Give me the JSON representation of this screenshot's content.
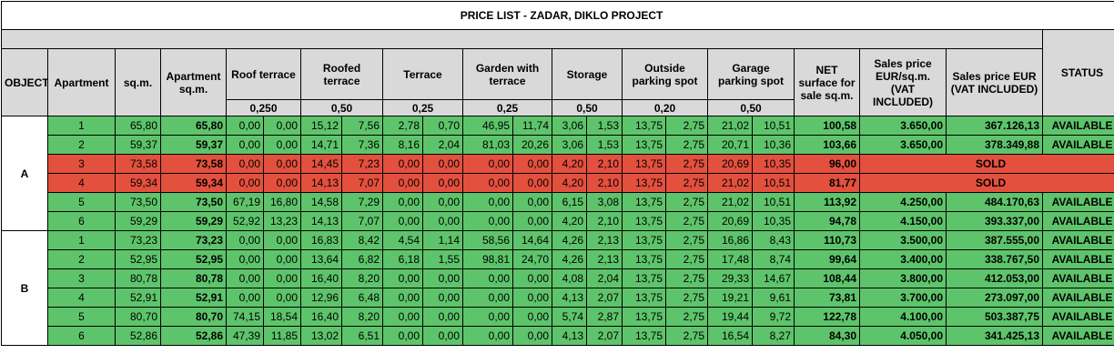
{
  "title": "PRICE LIST - ZADAR, DIKLO PROJECT",
  "headers": {
    "object": "OBJECT",
    "apartment": "Apartment",
    "sqm": "sq.m.",
    "apartment_sqm": "Apartment sq.m.",
    "roof_terrace": "Roof terrace",
    "roofed_terrace": "Roofed terrace",
    "terrace": "Terrace",
    "garden": "Garden with terrace",
    "storage": "Storage",
    "outside_parking": "Outside parking spot",
    "garage_parking": "Garage parking spot",
    "net": "NET surface for sale sq.m.",
    "price_sqm": "Sales price EUR/sq.m. (VAT INCLUDED)",
    "price": "Sales price EUR (VAT INCLUDED)",
    "status": "STATUS"
  },
  "coefficients": {
    "roof_terrace": "0,250",
    "roofed_terrace": "0,50",
    "terrace": "0,25",
    "garden": "0,25",
    "storage": "0,50",
    "outside_parking": "0,20",
    "garage_parking": "0,50"
  },
  "objects": [
    {
      "name": "A",
      "rows": [
        {
          "apt": "1",
          "sqm": "65,80",
          "apt_sqm": "65,80",
          "rt1": "0,00",
          "rt2": "0,00",
          "rf1": "15,12",
          "rf2": "7,56",
          "t1": "2,78",
          "t2": "0,70",
          "g1": "46,95",
          "g2": "11,74",
          "s1": "3,06",
          "s2": "1,53",
          "op1": "13,75",
          "op2": "2,75",
          "gp1": "21,02",
          "gp2": "10,51",
          "net": "100,58",
          "psqm": "3.650,00",
          "price": "367.126,13",
          "status": "AVAILABLE"
        },
        {
          "apt": "2",
          "sqm": "59,37",
          "apt_sqm": "59,37",
          "rt1": "0,00",
          "rt2": "0,00",
          "rf1": "14,71",
          "rf2": "7,36",
          "t1": "8,16",
          "t2": "2,04",
          "g1": "81,03",
          "g2": "20,26",
          "s1": "3,06",
          "s2": "1,53",
          "op1": "13,75",
          "op2": "2,75",
          "gp1": "20,71",
          "gp2": "10,36",
          "net": "103,66",
          "psqm": "3.650,00",
          "price": "378.349,88",
          "status": "AVAILABLE"
        },
        {
          "apt": "3",
          "sqm": "73,58",
          "apt_sqm": "73,58",
          "rt1": "0,00",
          "rt2": "0,00",
          "rf1": "14,45",
          "rf2": "7,23",
          "t1": "0,00",
          "t2": "0,00",
          "g1": "0,00",
          "g2": "0,00",
          "s1": "4,20",
          "s2": "2,10",
          "op1": "13,75",
          "op2": "2,75",
          "gp1": "20,69",
          "gp2": "10,35",
          "net": "96,00",
          "psqm": "",
          "price": "",
          "status": "SOLD"
        },
        {
          "apt": "4",
          "sqm": "59,34",
          "apt_sqm": "59,34",
          "rt1": "0,00",
          "rt2": "0,00",
          "rf1": "14,13",
          "rf2": "7,07",
          "t1": "0,00",
          "t2": "0,00",
          "g1": "0,00",
          "g2": "0,00",
          "s1": "4,20",
          "s2": "2,10",
          "op1": "13,75",
          "op2": "2,75",
          "gp1": "21,02",
          "gp2": "10,51",
          "net": "81,77",
          "psqm": "",
          "price": "",
          "status": "SOLD"
        },
        {
          "apt": "5",
          "sqm": "73,50",
          "apt_sqm": "73,50",
          "rt1": "67,19",
          "rt2": "16,80",
          "rf1": "14,58",
          "rf2": "7,29",
          "t1": "0,00",
          "t2": "0,00",
          "g1": "0,00",
          "g2": "0,00",
          "s1": "6,15",
          "s2": "3,08",
          "op1": "13,75",
          "op2": "2,75",
          "gp1": "21,02",
          "gp2": "10,51",
          "net": "113,92",
          "psqm": "4.250,00",
          "price": "484.170,63",
          "status": "AVAILABLE"
        },
        {
          "apt": "6",
          "sqm": "59,29",
          "apt_sqm": "59,29",
          "rt1": "52,92",
          "rt2": "13,23",
          "rf1": "14,13",
          "rf2": "7,07",
          "t1": "0,00",
          "t2": "0,00",
          "g1": "0,00",
          "g2": "0,00",
          "s1": "4,20",
          "s2": "2,10",
          "op1": "13,75",
          "op2": "2,75",
          "gp1": "20,69",
          "gp2": "10,35",
          "net": "94,78",
          "psqm": "4.150,00",
          "price": "393.337,00",
          "status": "AVAILABLE"
        }
      ]
    },
    {
      "name": "B",
      "rows": [
        {
          "apt": "1",
          "sqm": "73,23",
          "apt_sqm": "73,23",
          "rt1": "0,00",
          "rt2": "0,00",
          "rf1": "16,83",
          "rf2": "8,42",
          "t1": "4,54",
          "t2": "1,14",
          "g1": "58,56",
          "g2": "14,64",
          "s1": "4,26",
          "s2": "2,13",
          "op1": "13,75",
          "op2": "2,75",
          "gp1": "16,86",
          "gp2": "8,43",
          "net": "110,73",
          "psqm": "3.500,00",
          "price": "387.555,00",
          "status": "AVAILABLE"
        },
        {
          "apt": "2",
          "sqm": "52,95",
          "apt_sqm": "52,95",
          "rt1": "0,00",
          "rt2": "0,00",
          "rf1": "13,64",
          "rf2": "6,82",
          "t1": "6,18",
          "t2": "1,55",
          "g1": "98,81",
          "g2": "24,70",
          "s1": "4,26",
          "s2": "2,13",
          "op1": "13,75",
          "op2": "2,75",
          "gp1": "17,48",
          "gp2": "8,74",
          "net": "99,64",
          "psqm": "3.400,00",
          "price": "338.767,50",
          "status": "AVAILABLE"
        },
        {
          "apt": "3",
          "sqm": "80,78",
          "apt_sqm": "80,78",
          "rt1": "0,00",
          "rt2": "0,00",
          "rf1": "16,40",
          "rf2": "8,20",
          "t1": "0,00",
          "t2": "0,00",
          "g1": "0,00",
          "g2": "0,00",
          "s1": "4,08",
          "s2": "2,04",
          "op1": "13,75",
          "op2": "2,75",
          "gp1": "29,33",
          "gp2": "14,67",
          "net": "108,44",
          "psqm": "3.800,00",
          "price": "412.053,00",
          "status": "AVAILABLE"
        },
        {
          "apt": "4",
          "sqm": "52,91",
          "apt_sqm": "52,91",
          "rt1": "0,00",
          "rt2": "0,00",
          "rf1": "12,96",
          "rf2": "6,48",
          "t1": "0,00",
          "t2": "0,00",
          "g1": "0,00",
          "g2": "0,00",
          "s1": "4,13",
          "s2": "2,07",
          "op1": "13,75",
          "op2": "2,75",
          "gp1": "19,21",
          "gp2": "9,61",
          "net": "73,81",
          "psqm": "3.700,00",
          "price": "273.097,00",
          "status": "AVAILABLE"
        },
        {
          "apt": "5",
          "sqm": "80,70",
          "apt_sqm": "80,70",
          "rt1": "74,15",
          "rt2": "18,54",
          "rf1": "16,40",
          "rf2": "8,20",
          "t1": "0,00",
          "t2": "0,00",
          "g1": "0,00",
          "g2": "0,00",
          "s1": "5,74",
          "s2": "2,87",
          "op1": "13,75",
          "op2": "2,75",
          "gp1": "19,44",
          "gp2": "9,72",
          "net": "122,78",
          "psqm": "4.100,00",
          "price": "503.387,75",
          "status": "AVAILABLE"
        },
        {
          "apt": "6",
          "sqm": "52,86",
          "apt_sqm": "52,86",
          "rt1": "47,39",
          "rt2": "11,85",
          "rf1": "13,02",
          "rf2": "6,51",
          "t1": "0,00",
          "t2": "0,00",
          "g1": "0,00",
          "g2": "0,00",
          "s1": "4,13",
          "s2": "2,07",
          "op1": "13,75",
          "op2": "2,75",
          "gp1": "16,54",
          "gp2": "8,27",
          "net": "84,30",
          "psqm": "4.050,00",
          "price": "341.425,13",
          "status": "AVAILABLE"
        }
      ]
    }
  ],
  "colors": {
    "available": "#5ec46b",
    "sold": "#e4503e",
    "header_gray": "#d9d9d9"
  }
}
